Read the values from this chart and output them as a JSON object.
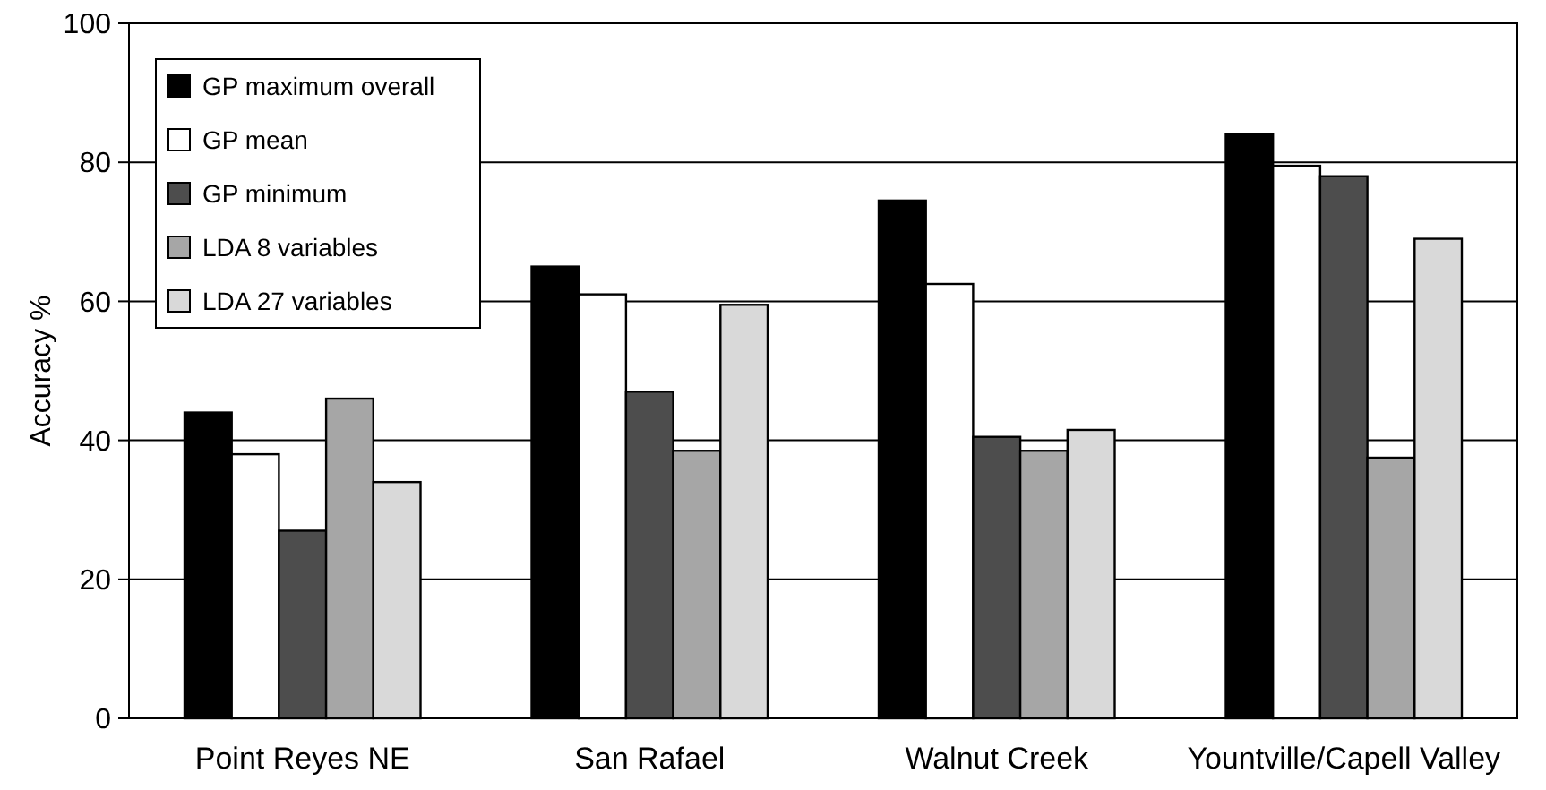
{
  "chart_data": {
    "type": "bar",
    "ylabel": "Accuracy %",
    "categories": [
      "Point Reyes NE",
      "San Rafael",
      "Walnut Creek",
      "Yountville/Capell Valley"
    ],
    "series": [
      {
        "name": "GP maximum overall",
        "color": "#000000",
        "values": [
          44,
          65,
          74.5,
          84
        ]
      },
      {
        "name": "GP mean",
        "color": "#ffffff",
        "values": [
          38,
          61,
          62.5,
          79.5
        ]
      },
      {
        "name": "GP minimum",
        "color": "#4d4d4d",
        "values": [
          27,
          47,
          40.5,
          78
        ]
      },
      {
        "name": "LDA 8 variables",
        "color": "#a6a6a6",
        "values": [
          46,
          38.5,
          38.5,
          37.5
        ]
      },
      {
        "name": "LDA 27 variables",
        "color": "#d9d9d9",
        "values": [
          34,
          59.5,
          41.5,
          69
        ]
      }
    ],
    "ylim": [
      0,
      100
    ],
    "yticks": [
      0,
      20,
      40,
      60,
      80,
      100
    ],
    "grid": "y",
    "legend": "top left"
  }
}
